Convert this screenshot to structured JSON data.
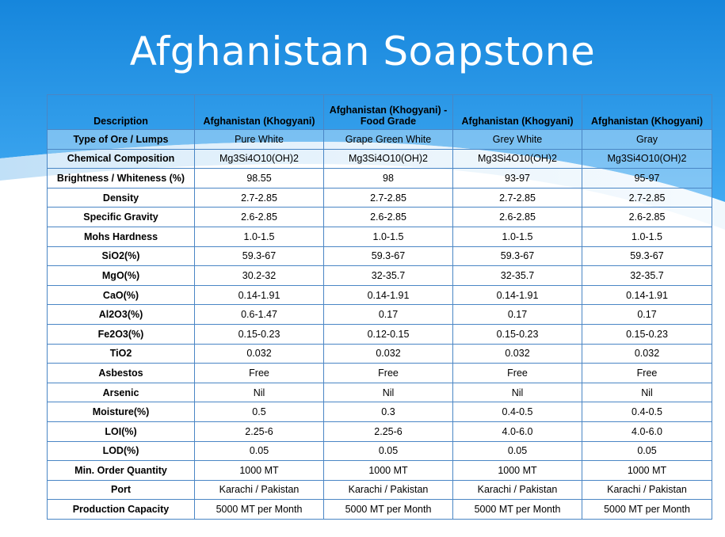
{
  "title": "Afghanistan Soapstone",
  "table": {
    "headers": [
      "Description",
      "Afghanistan (Khogyani)",
      "Afghanistan (Khogyani) - Food Grade",
      "Afghanistan (Khogyani)",
      "Afghanistan (Khogyani)"
    ],
    "rows": [
      {
        "label": "Type of Ore / Lumps",
        "values": [
          "Pure White",
          "Grape Green White",
          "Grey White",
          "Gray"
        ]
      },
      {
        "label": "Chemical Composition",
        "values": [
          "Mg3Si4O10(OH)2",
          "Mg3Si4O10(OH)2",
          "Mg3Si4O10(OH)2",
          "Mg3Si4O10(OH)2"
        ]
      },
      {
        "label": "Brightness / Whiteness (%)",
        "values": [
          "98.55",
          "98",
          "93-97",
          "95-97"
        ]
      },
      {
        "label": "Density",
        "values": [
          "2.7-2.85",
          "2.7-2.85",
          "2.7-2.85",
          "2.7-2.85"
        ]
      },
      {
        "label": "Specific Gravity",
        "values": [
          "2.6-2.85",
          "2.6-2.85",
          "2.6-2.85",
          "2.6-2.85"
        ]
      },
      {
        "label": "Mohs Hardness",
        "values": [
          "1.0-1.5",
          "1.0-1.5",
          "1.0-1.5",
          "1.0-1.5"
        ]
      },
      {
        "label": "SiO2(%)",
        "values": [
          "59.3-67",
          "59.3-67",
          "59.3-67",
          "59.3-67"
        ]
      },
      {
        "label": "MgO(%)",
        "values": [
          "30.2-32",
          "32-35.7",
          "32-35.7",
          "32-35.7"
        ]
      },
      {
        "label": "CaO(%)",
        "values": [
          "0.14-1.91",
          "0.14-1.91",
          "0.14-1.91",
          "0.14-1.91"
        ]
      },
      {
        "label": "Al2O3(%)",
        "values": [
          "0.6-1.47",
          "0.17",
          "0.17",
          "0.17"
        ]
      },
      {
        "label": "Fe2O3(%)",
        "values": [
          "0.15-0.23",
          "0.12-0.15",
          "0.15-0.23",
          "0.15-0.23"
        ]
      },
      {
        "label": "TiO2",
        "values": [
          "0.032",
          "0.032",
          "0.032",
          "0.032"
        ]
      },
      {
        "label": "Asbestos",
        "values": [
          "Free",
          "Free",
          "Free",
          "Free"
        ]
      },
      {
        "label": "Arsenic",
        "values": [
          "Nil",
          "Nil",
          "Nil",
          "Nil"
        ]
      },
      {
        "label": "Moisture(%)",
        "values": [
          "0.5",
          "0.3",
          "0.4-0.5",
          "0.4-0.5"
        ]
      },
      {
        "label": "LOI(%)",
        "values": [
          "2.25-6",
          "2.25-6",
          "4.0-6.0",
          "4.0-6.0"
        ]
      },
      {
        "label": "LOD(%)",
        "values": [
          "0.05",
          "0.05",
          "0.05",
          "0.05"
        ]
      },
      {
        "label": "Min. Order Quantity",
        "values": [
          "1000 MT",
          "1000 MT",
          "1000 MT",
          "1000 MT"
        ]
      },
      {
        "label": "Port",
        "values": [
          "Karachi / Pakistan",
          "Karachi / Pakistan",
          "Karachi / Pakistan",
          "Karachi / Pakistan"
        ]
      },
      {
        "label": "Production Capacity",
        "values": [
          "5000 MT per Month",
          "5000 MT per Month",
          "5000 MT per Month",
          "5000 MT per Month"
        ]
      }
    ]
  },
  "colors": {
    "header_blue_top": "#1a8fe0",
    "header_blue_bottom": "#3aa6f0",
    "table_border": "#4a86c5",
    "title_text": "#ffffff"
  }
}
